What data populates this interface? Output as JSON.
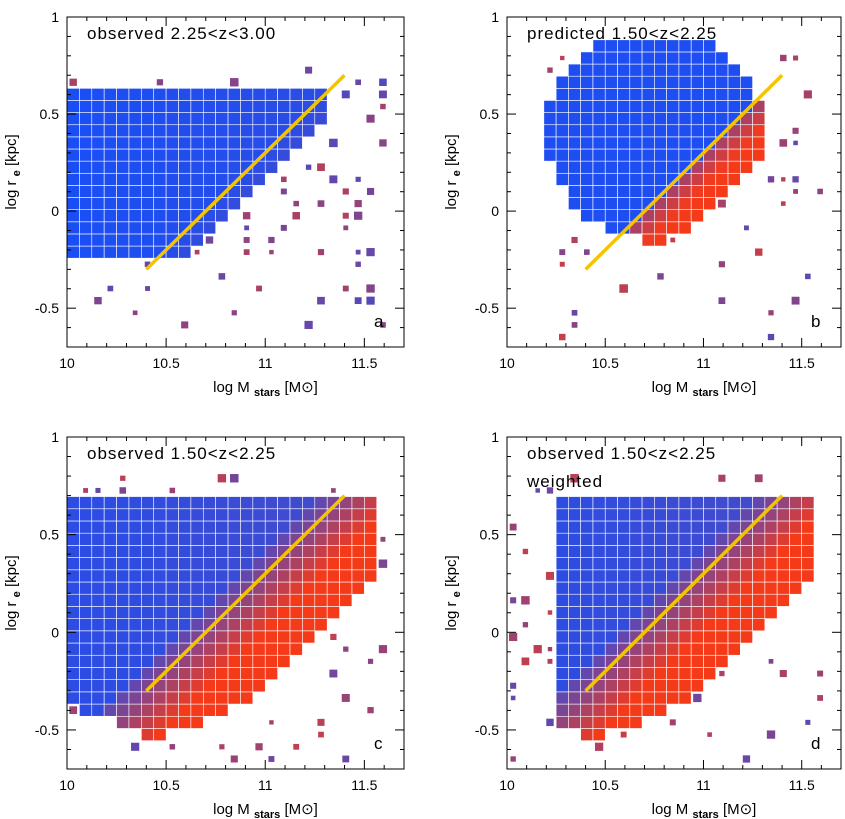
{
  "figure": {
    "xlabel_prefix": "log M",
    "xlabel_sub": "stars",
    "xlabel_unit": "[M",
    "xlabel_close": "]",
    "ylabel_prefix": "log r",
    "ylabel_sub": "e",
    "ylabel_unit": "[kpc]"
  },
  "colors": {
    "blue": "#1a4ef5",
    "red": "#f53a1a",
    "trend_line": "#f5c400",
    "frame": "#000000"
  },
  "chart_data": [
    {
      "type": "heatmap",
      "panel_label": "a",
      "annotation": [
        "observed 2.25<z<3.00"
      ],
      "xlim": [
        10,
        11.7
      ],
      "ylim": [
        -0.7,
        1.0
      ],
      "xticks": [
        "10",
        "10.5",
        "11",
        "11.5"
      ],
      "yticks": [
        "1",
        "0.5",
        "0",
        "-0.5"
      ],
      "trend_line": [
        [
          10.4,
          -0.3
        ],
        [
          11.4,
          0.7
        ]
      ],
      "grid": false
    },
    {
      "type": "heatmap",
      "panel_label": "b",
      "annotation": [
        "predicted 1.50<z<2.25"
      ],
      "xlim": [
        10,
        11.7
      ],
      "ylim": [
        -0.7,
        1.0
      ],
      "xticks": [
        "10",
        "10.5",
        "11",
        "11.5"
      ],
      "yticks": [
        "1",
        "0.5",
        "0",
        "-0.5"
      ],
      "trend_line": [
        [
          10.4,
          -0.3
        ],
        [
          11.4,
          0.7
        ]
      ],
      "grid": false
    },
    {
      "type": "heatmap",
      "panel_label": "c",
      "annotation": [
        "observed 1.50<z<2.25"
      ],
      "xlim": [
        10,
        11.7
      ],
      "ylim": [
        -0.7,
        1.0
      ],
      "xticks": [
        "10",
        "10.5",
        "11",
        "11.5"
      ],
      "yticks": [
        "1",
        "0.5",
        "0",
        "-0.5"
      ],
      "trend_line": [
        [
          10.4,
          -0.3
        ],
        [
          11.4,
          0.7
        ]
      ],
      "grid": false
    },
    {
      "type": "heatmap",
      "panel_label": "d",
      "annotation": [
        "observed 1.50<z<2.25",
        "weighted"
      ],
      "xlim": [
        10,
        11.7
      ],
      "ylim": [
        -0.7,
        1.0
      ],
      "xticks": [
        "10",
        "10.5",
        "11",
        "11.5"
      ],
      "yticks": [
        "1",
        "0.5",
        "0",
        "-0.5"
      ],
      "trend_line": [
        [
          10.4,
          -0.3
        ],
        [
          11.4,
          0.7
        ]
      ],
      "grid": false
    }
  ]
}
